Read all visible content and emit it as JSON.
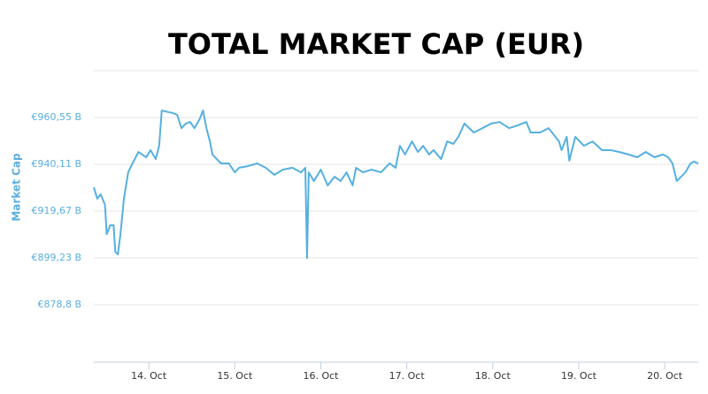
{
  "chart_data": {
    "type": "line",
    "title": "TOTAL MARKET CAP (EUR)",
    "y_label": "Market Cap",
    "x": [
      13.36,
      13.4,
      13.44,
      13.49,
      13.51,
      13.55,
      13.59,
      13.61,
      13.64,
      13.67,
      13.71,
      13.76,
      13.81,
      13.88,
      13.92,
      13.97,
      14.02,
      14.08,
      14.12,
      14.15,
      14.23,
      14.28,
      14.33,
      14.38,
      14.43,
      14.48,
      14.53,
      14.59,
      14.63,
      14.67,
      14.71,
      14.74,
      14.79,
      14.84,
      14.93,
      15.0,
      15.05,
      15.15,
      15.26,
      15.36,
      15.46,
      15.56,
      15.67,
      15.77,
      15.82,
      15.84,
      15.86,
      15.92,
      16.0,
      16.08,
      16.16,
      16.23,
      16.3,
      16.37,
      16.41,
      16.49,
      16.59,
      16.7,
      16.8,
      16.87,
      16.92,
      16.98,
      17.06,
      17.13,
      17.19,
      17.26,
      17.31,
      17.4,
      17.47,
      17.54,
      17.6,
      17.67,
      17.78,
      17.88,
      17.98,
      18.08,
      18.19,
      18.29,
      18.39,
      18.44,
      18.55,
      18.65,
      18.77,
      18.8,
      18.86,
      18.89,
      18.96,
      19.06,
      19.16,
      19.27,
      19.37,
      19.47,
      19.58,
      19.68,
      19.78,
      19.88,
      19.98,
      20.04,
      20.09,
      20.14,
      20.19,
      20.24,
      20.3,
      20.34,
      20.39
    ],
    "series": [
      {
        "name": "Market Cap",
        "color": "#55b0e0",
        "values": [
          930.1,
          925.1,
          927.0,
          922.4,
          909.6,
          913.5,
          913.5,
          901.9,
          900.8,
          909.6,
          925.1,
          936.6,
          940.5,
          945.5,
          944.4,
          943.2,
          946.3,
          942.4,
          948.2,
          963.6,
          962.9,
          962.5,
          961.7,
          955.9,
          957.9,
          958.6,
          955.9,
          959.8,
          963.6,
          955.9,
          950.1,
          944.4,
          942.4,
          940.5,
          940.5,
          936.6,
          938.6,
          939.3,
          940.5,
          938.6,
          935.5,
          937.8,
          938.6,
          936.6,
          938.6,
          899.2,
          936.6,
          932.8,
          937.8,
          930.9,
          934.7,
          932.8,
          936.6,
          930.9,
          938.6,
          936.6,
          937.8,
          936.6,
          940.5,
          938.6,
          948.2,
          944.4,
          950.1,
          945.5,
          948.2,
          944.4,
          946.3,
          942.4,
          950.1,
          949.0,
          952.1,
          957.9,
          954.0,
          955.9,
          957.9,
          958.6,
          955.9,
          957.1,
          958.6,
          954.0,
          954.0,
          955.9,
          950.1,
          946.3,
          952.1,
          941.7,
          952.1,
          948.2,
          950.1,
          946.3,
          946.3,
          945.5,
          944.4,
          943.2,
          945.5,
          943.2,
          944.4,
          943.2,
          940.5,
          932.8,
          934.7,
          936.6,
          940.5,
          941.3,
          940.5
        ]
      }
    ],
    "xlim": [
      13.36,
      20.39
    ],
    "xticks": [
      {
        "value": 14,
        "label": "14. Oct"
      },
      {
        "value": 15,
        "label": "15. Oct"
      },
      {
        "value": 16,
        "label": "16. Oct"
      },
      {
        "value": 17,
        "label": "17. Oct"
      },
      {
        "value": 18,
        "label": "18. Oct"
      },
      {
        "value": 19,
        "label": "19. Oct"
      },
      {
        "value": 20,
        "label": "20. Oct"
      }
    ],
    "ylim": [
      853.7,
      981
    ],
    "yticks": [
      {
        "value": 878.8,
        "label": "€878,8 B"
      },
      {
        "value": 899.23,
        "label": "€899,23 B"
      },
      {
        "value": 919.67,
        "label": "€919,67 B"
      },
      {
        "value": 940.11,
        "label": "€940,11 B"
      },
      {
        "value": 960.55,
        "label": "€960,55 B"
      }
    ],
    "grid": true
  }
}
